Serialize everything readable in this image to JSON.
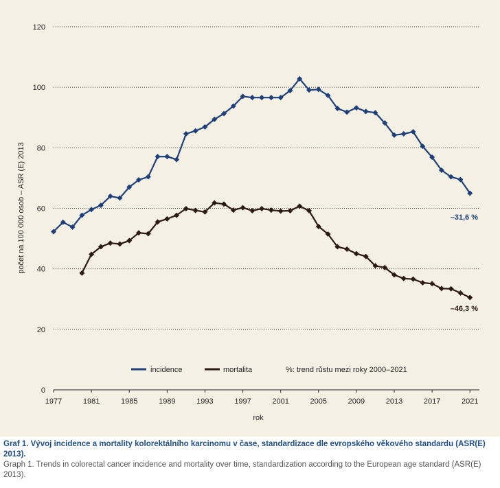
{
  "chart_data": {
    "type": "line",
    "title": "",
    "xlabel": "rok",
    "ylabel": "počet na 100 000 osob – ASR (E) 2013",
    "ylim": [
      0,
      120
    ],
    "xlim": [
      1977,
      2022
    ],
    "y_ticks": [
      0,
      20,
      40,
      60,
      80,
      100,
      120
    ],
    "x_ticks": [
      1977,
      1981,
      1985,
      1989,
      1993,
      1997,
      2001,
      2005,
      2009,
      2013,
      2017,
      2021
    ],
    "grid": "horizontal dotted",
    "legend_position": "bottom",
    "series": [
      {
        "name": "incidence",
        "color": "#1e3f7a",
        "x": [
          1977,
          1978,
          1979,
          1980,
          1981,
          1982,
          1983,
          1984,
          1985,
          1986,
          1987,
          1988,
          1989,
          1990,
          1991,
          1992,
          1993,
          1994,
          1995,
          1996,
          1997,
          1998,
          1999,
          2000,
          2001,
          2002,
          2003,
          2004,
          2005,
          2006,
          2007,
          2008,
          2009,
          2010,
          2011,
          2012,
          2013,
          2014,
          2015,
          2016,
          2017,
          2018,
          2019,
          2020,
          2021
        ],
        "values": [
          52.3,
          55.4,
          53.8,
          57.7,
          59.6,
          61.0,
          64.0,
          63.4,
          67.0,
          69.4,
          70.4,
          77.1,
          77.1,
          76.1,
          84.6,
          85.6,
          86.9,
          89.4,
          91.3,
          93.8,
          97.0,
          96.6,
          96.6,
          96.6,
          96.6,
          98.9,
          102.8,
          99.1,
          99.3,
          97.3,
          93.0,
          91.8,
          93.2,
          92.0,
          91.6,
          88.2,
          84.2,
          84.6,
          85.3,
          80.5,
          76.9,
          72.6,
          70.4,
          69.5,
          65.0
        ]
      },
      {
        "name": "mortalita",
        "color": "#2b1a14",
        "x": [
          1980,
          1981,
          1982,
          1983,
          1984,
          1985,
          1986,
          1987,
          1988,
          1989,
          1990,
          1991,
          1992,
          1993,
          1994,
          1995,
          1996,
          1997,
          1998,
          1999,
          2000,
          2001,
          2002,
          2003,
          2004,
          2005,
          2006,
          2007,
          2008,
          2009,
          2010,
          2011,
          2012,
          2013,
          2014,
          2015,
          2016,
          2017,
          2018,
          2019,
          2020,
          2021
        ],
        "values": [
          38.6,
          44.8,
          47.3,
          48.5,
          48.2,
          49.3,
          51.9,
          51.6,
          55.5,
          56.5,
          57.7,
          59.9,
          59.3,
          58.8,
          61.8,
          61.4,
          59.4,
          60.2,
          59.2,
          59.9,
          59.4,
          59.1,
          59.2,
          60.7,
          59.2,
          54.0,
          51.5,
          47.3,
          46.5,
          45.0,
          44.1,
          41.0,
          40.4,
          38.0,
          36.8,
          36.6,
          35.4,
          35.1,
          33.5,
          33.4,
          32.0,
          30.5
        ]
      }
    ],
    "legend": [
      {
        "label": "incidence",
        "color": "#1e3f7a"
      },
      {
        "label": "mortalita",
        "color": "#2b1a14"
      },
      {
        "label": "%: trend růstu mezi roky 2000–2021",
        "color": ""
      }
    ],
    "annotations": [
      {
        "text": "–31,6 %",
        "x": 2021,
        "y": 60,
        "color": "#1e3f7a"
      },
      {
        "text": "–46,3 %",
        "x": 2021,
        "y": 26,
        "color": "#2b1a14"
      }
    ]
  },
  "caption": {
    "czech": "Graf 1. Vývoj incidence a mortality kolorektálního karcinomu v čase, standardizace dle evropského věkového standardu (ASR(E) 2013).",
    "english": "Graph 1. Trends in colorectal cancer incidence and mortality over time, standardization according to the European age standard (ASR(E) 2013)."
  }
}
